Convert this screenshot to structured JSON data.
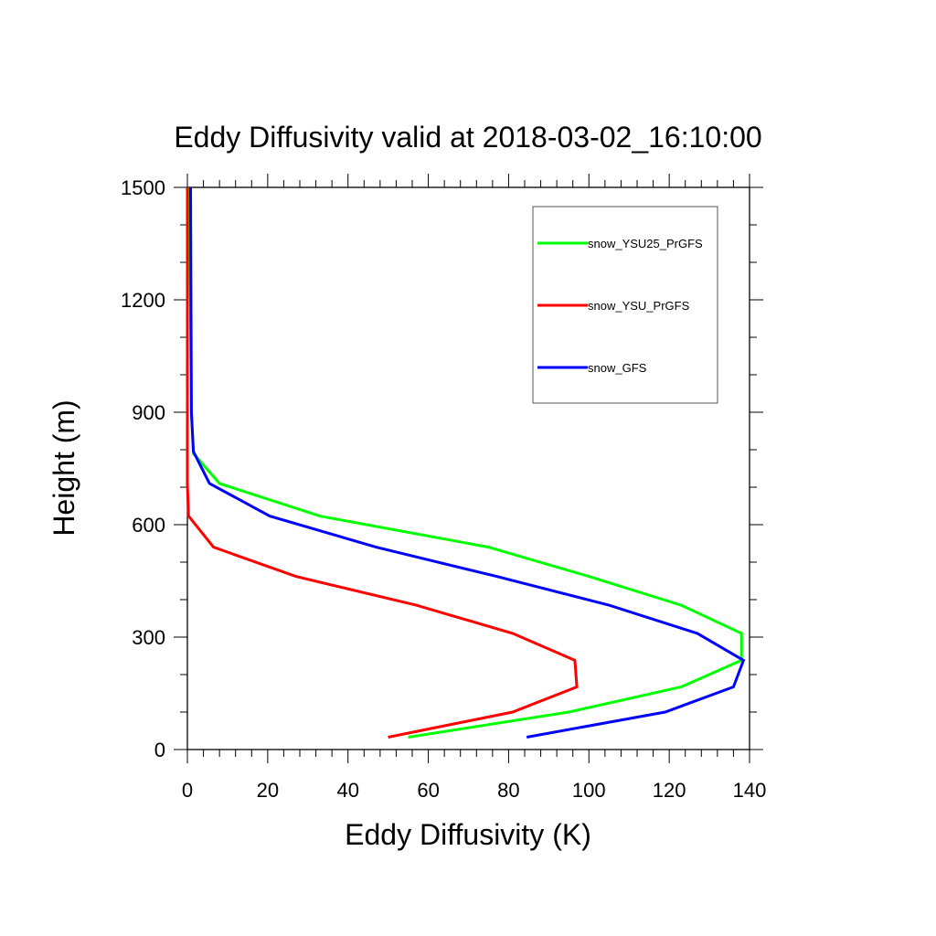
{
  "chart_data": {
    "type": "line",
    "title": "Eddy Diffusivity valid at 2018-03-02_16:10:00",
    "xlabel": "Eddy Diffusivity (K)",
    "ylabel": "Height (m)",
    "xlim": [
      0,
      140
    ],
    "ylim": [
      0,
      1500
    ],
    "xticks": [
      0,
      20,
      40,
      60,
      80,
      100,
      120,
      140
    ],
    "yticks": [
      0,
      300,
      600,
      900,
      1200,
      1500
    ],
    "grid": false,
    "legend_position": "top-right",
    "series": [
      {
        "name": "snow_YSU25_PrGFS",
        "color": "#00ff00",
        "points": [
          [
            55,
            33
          ],
          [
            95,
            100
          ],
          [
            123,
            167
          ],
          [
            138,
            238
          ],
          [
            138,
            310
          ],
          [
            123,
            385
          ],
          [
            100,
            462
          ],
          [
            75,
            540
          ],
          [
            33,
            623
          ],
          [
            8,
            710
          ],
          [
            1.5,
            790
          ],
          [
            1,
            900
          ],
          [
            0.5,
            1500
          ]
        ]
      },
      {
        "name": "snow_YSU_PrGFS",
        "color": "#ff0000",
        "points": [
          [
            50,
            33
          ],
          [
            81,
            100
          ],
          [
            97,
            167
          ],
          [
            96.5,
            238
          ],
          [
            81,
            310
          ],
          [
            57,
            385
          ],
          [
            27,
            462
          ],
          [
            6.5,
            540
          ],
          [
            0.3,
            623
          ],
          [
            0,
            710
          ],
          [
            0,
            800
          ],
          [
            0,
            1500
          ]
        ]
      },
      {
        "name": "snow_GFS",
        "color": "#0000ff",
        "points": [
          [
            84.5,
            33
          ],
          [
            119,
            100
          ],
          [
            136,
            167
          ],
          [
            138.5,
            238
          ],
          [
            127,
            310
          ],
          [
            105,
            385
          ],
          [
            77,
            462
          ],
          [
            47,
            540
          ],
          [
            20.5,
            623
          ],
          [
            5.5,
            710
          ],
          [
            1.5,
            795
          ],
          [
            1,
            900
          ],
          [
            0.8,
            1500
          ]
        ]
      }
    ]
  }
}
